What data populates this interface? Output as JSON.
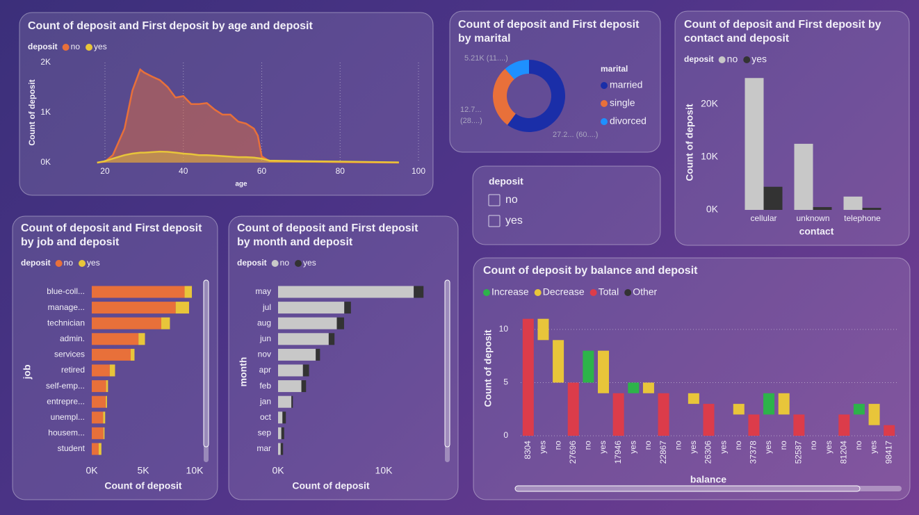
{
  "chart_data": [
    {
      "type": "area",
      "title": "Count of deposit and First deposit by age and deposit",
      "legend_title": "deposit",
      "x_label": "age",
      "y_label": "Count of deposit",
      "x": [
        18,
        20,
        22,
        25,
        27,
        29,
        30,
        32,
        34,
        36,
        38,
        40,
        42,
        44,
        46,
        48,
        50,
        52,
        54,
        56,
        58,
        59,
        60,
        62,
        70,
        80,
        95
      ],
      "series": [
        {
          "name": "no",
          "color": "#e8703a",
          "values": [
            0,
            20,
            150,
            680,
            1440,
            1860,
            1800,
            1720,
            1650,
            1510,
            1300,
            1330,
            1170,
            1170,
            1190,
            1060,
            960,
            960,
            820,
            780,
            680,
            540,
            125,
            30,
            20,
            10,
            0
          ]
        },
        {
          "name": "yes",
          "color": "#e8c53a",
          "values": [
            0,
            30,
            80,
            150,
            180,
            200,
            200,
            210,
            220,
            215,
            200,
            180,
            170,
            150,
            150,
            140,
            130,
            120,
            110,
            110,
            100,
            90,
            80,
            40,
            30,
            20,
            5
          ]
        }
      ],
      "xlim": [
        15,
        100
      ],
      "xticks": [
        20,
        40,
        60,
        80,
        100
      ],
      "ylim": [
        0,
        2000
      ],
      "yticks": [
        {
          "value": 0,
          "label": "0K"
        },
        {
          "value": 1000,
          "label": "1K"
        },
        {
          "value": 2000,
          "label": "2K"
        }
      ],
      "grid": "x"
    },
    {
      "type": "donut",
      "title": "Count of deposit and First deposit by marital",
      "legend_title": "marital",
      "categories": [
        "married",
        "single",
        "divorced"
      ],
      "values": [
        27214,
        12790,
        5207
      ],
      "value_labels": [
        "27.2... (60....)",
        "12.7... (28....)",
        "5.21K (11....)"
      ],
      "colors": [
        "#1a2ea8",
        "#e8703a",
        "#1e90ff"
      ]
    },
    {
      "type": "bar",
      "title": "Count of deposit and First deposit by contact and deposit",
      "legend_title": "deposit",
      "x_label": "contact",
      "y_label": "Count of deposit",
      "categories": [
        "cellular",
        "unknown",
        "telephone"
      ],
      "series": [
        {
          "name": "no",
          "color": "#c8c8c8",
          "values": [
            24916,
            12490,
            2516
          ]
        },
        {
          "name": "yes",
          "color": "#333333",
          "values": [
            4369,
            530,
            390
          ]
        }
      ],
      "ylim": [
        0,
        26000
      ],
      "yticks": [
        {
          "value": 0,
          "label": "0K"
        },
        {
          "value": 10000,
          "label": "10K"
        },
        {
          "value": 20000,
          "label": "20K"
        }
      ]
    },
    {
      "type": "hbar",
      "title": "Count of deposit and First deposit by job and deposit",
      "legend_title": "deposit",
      "x_label": "Count of deposit",
      "y_label": "job",
      "categories": [
        "blue-coll...",
        "manage...",
        "technician",
        "admin.",
        "services",
        "retired",
        "self-emp...",
        "entrepre...",
        "unempl...",
        "housem...",
        "student"
      ],
      "series": [
        {
          "name": "no",
          "color": "#e8703a",
          "values": [
            9024,
            8157,
            6757,
            4540,
            3785,
            1748,
            1392,
            1364,
            1101,
            1131,
            669
          ]
        },
        {
          "name": "yes",
          "color": "#e8c53a",
          "values": [
            708,
            1301,
            840,
            631,
            369,
            516,
            187,
            123,
            202,
            109,
            269
          ]
        }
      ],
      "xlim": [
        0,
        10000
      ],
      "xticks": [
        {
          "value": 0,
          "label": "0K"
        },
        {
          "value": 5000,
          "label": "5K"
        },
        {
          "value": 10000,
          "label": "10K"
        }
      ]
    },
    {
      "type": "hbar",
      "title": "Count of deposit and First deposit by month and deposit",
      "legend_title": "deposit",
      "x_label": "Count of deposit",
      "y_label": "month",
      "categories": [
        "may",
        "jul",
        "aug",
        "jun",
        "nov",
        "apr",
        "feb",
        "jan",
        "oct",
        "sep",
        "mar"
      ],
      "series": [
        {
          "name": "no",
          "color": "#c8c8c8",
          "values": [
            12841,
            6268,
            5559,
            4795,
            3567,
            2355,
            2208,
            1261,
            415,
            310,
            248
          ]
        },
        {
          "name": "yes",
          "color": "#333333",
          "values": [
            925,
            627,
            688,
            546,
            403,
            577,
            441,
            142,
            323,
            269,
            229
          ]
        }
      ],
      "xlim": [
        0,
        15000
      ],
      "xticks": [
        {
          "value": 0,
          "label": "0K"
        },
        {
          "value": 10000,
          "label": "10K"
        }
      ]
    },
    {
      "type": "waterfall",
      "title": "Count of deposit by balance and deposit",
      "x_label": "balance",
      "y_label": "Count of deposit",
      "series": [
        {
          "name": "Increase",
          "color": "#2db34a"
        },
        {
          "name": "Decrease",
          "color": "#e8c53a"
        },
        {
          "name": "Total",
          "color": "#dc3c4a"
        },
        {
          "name": "Other",
          "color": "#333333"
        }
      ],
      "groups": [
        {
          "label": "8304",
          "total": 11,
          "steps": [
            {
              "label": "yes",
              "value": -2
            },
            {
              "label": "no",
              "value": -4
            }
          ]
        },
        {
          "label": "27696",
          "total": 5,
          "steps": [
            {
              "label": "no",
              "value": 3
            },
            {
              "label": "yes",
              "value": -4
            }
          ]
        },
        {
          "label": "17946",
          "total": 4,
          "steps": [
            {
              "label": "yes",
              "value": 1
            },
            {
              "label": "no",
              "value": -1
            }
          ]
        },
        {
          "label": "22867",
          "total": 4,
          "steps": [
            {
              "label": "no",
              "value": 0
            },
            {
              "label": "yes",
              "value": -1
            }
          ]
        },
        {
          "label": "26306",
          "total": 3,
          "steps": [
            {
              "label": "yes",
              "value": 0
            },
            {
              "label": "no",
              "value": -1
            }
          ]
        },
        {
          "label": "37378",
          "total": 2,
          "steps": [
            {
              "label": "yes",
              "value": 2
            },
            {
              "label": "no",
              "value": -2
            }
          ]
        },
        {
          "label": "52587",
          "total": 2,
          "steps": [
            {
              "label": "no",
              "value": 0
            },
            {
              "label": "yes",
              "value": 0
            }
          ]
        },
        {
          "label": "81204",
          "total": 2,
          "steps": [
            {
              "label": "no",
              "value": 1
            },
            {
              "label": "yes",
              "value": -2
            }
          ]
        },
        {
          "label": "98417",
          "total": 1,
          "steps": []
        }
      ],
      "ylim": [
        0,
        12
      ],
      "yticks": [
        0,
        5,
        10
      ],
      "grid": true
    }
  ],
  "slicer": {
    "title": "deposit",
    "items": [
      "no",
      "yes"
    ]
  }
}
